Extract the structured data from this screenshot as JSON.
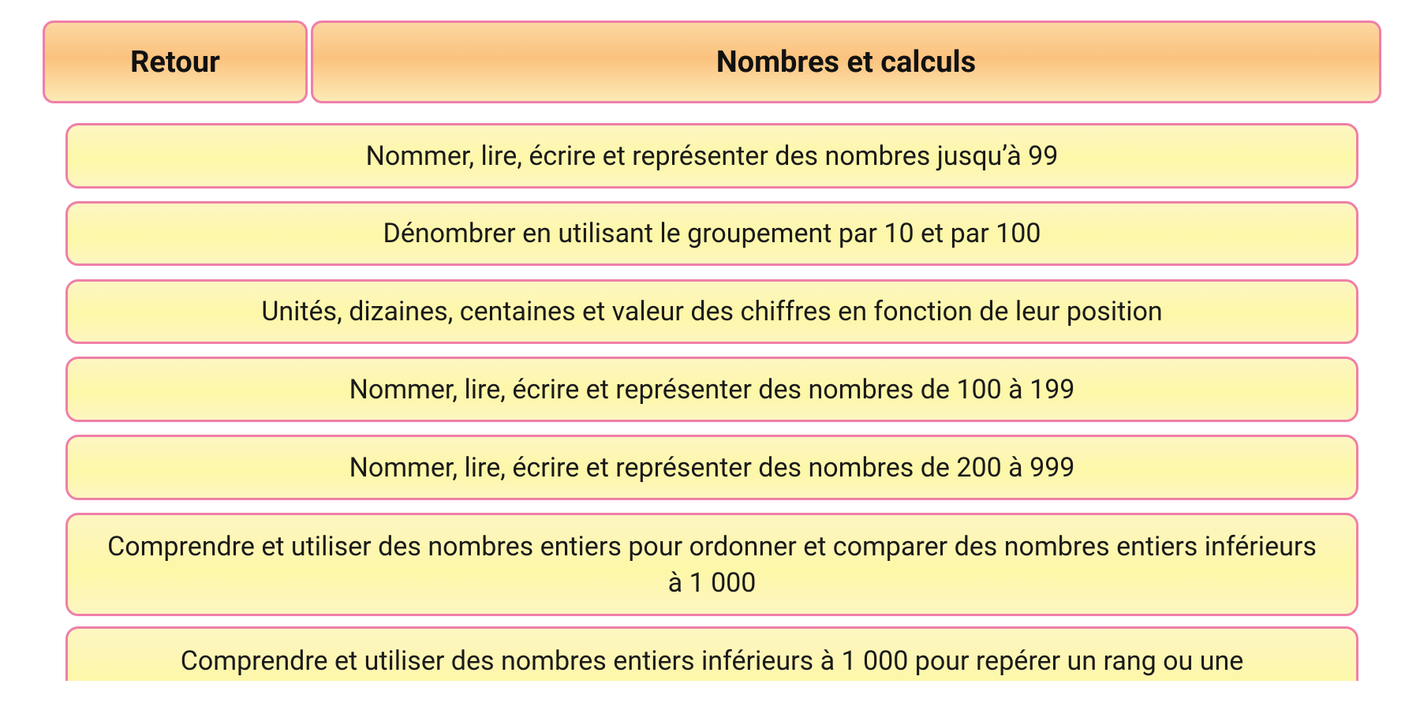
{
  "header": {
    "back": "Retour",
    "title": "Nombres et calculs"
  },
  "items": [
    "Nommer, lire, écrire et représenter des nombres jusqu’à 99",
    "Dénombrer en utilisant le groupement par 10 et par 100",
    "Unités, dizaines, centaines et valeur des chiffres en fonction de leur position",
    "Nommer, lire, écrire et représenter des nombres de 100 à 199",
    "Nommer, lire, écrire et représenter des nombres de 200 à 999",
    "Comprendre et utiliser des nombres entiers pour ordonner et comparer des nombres entiers inférieurs à 1 000",
    "Comprendre et utiliser des nombres entiers inférieurs à 1 000 pour repérer un rang ou une"
  ]
}
